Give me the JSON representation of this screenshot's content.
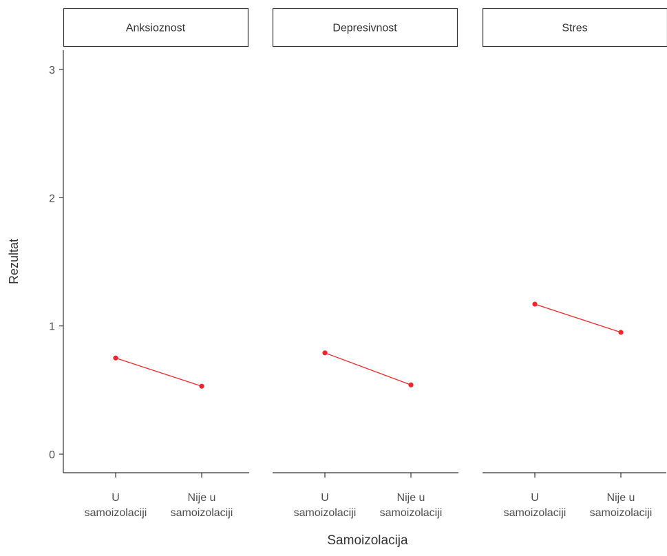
{
  "chart_data": {
    "type": "line",
    "xlabel": "Samoizolacija",
    "ylabel": "Rezultat",
    "ylim": [
      0,
      3
    ],
    "y_ticks": [
      "0",
      "1",
      "2",
      "3"
    ],
    "categories": [
      [
        "U",
        "samoizolaciji"
      ],
      [
        "Nije u",
        "samoizolaciji"
      ]
    ],
    "series_color": "#f8232a",
    "grid": false,
    "panels": [
      {
        "title": "Anksioznost",
        "values": [
          0.75,
          0.53
        ]
      },
      {
        "title": "Depresivnost",
        "values": [
          0.79,
          0.54
        ]
      },
      {
        "title": "Stres",
        "values": [
          1.17,
          0.95
        ]
      }
    ]
  }
}
